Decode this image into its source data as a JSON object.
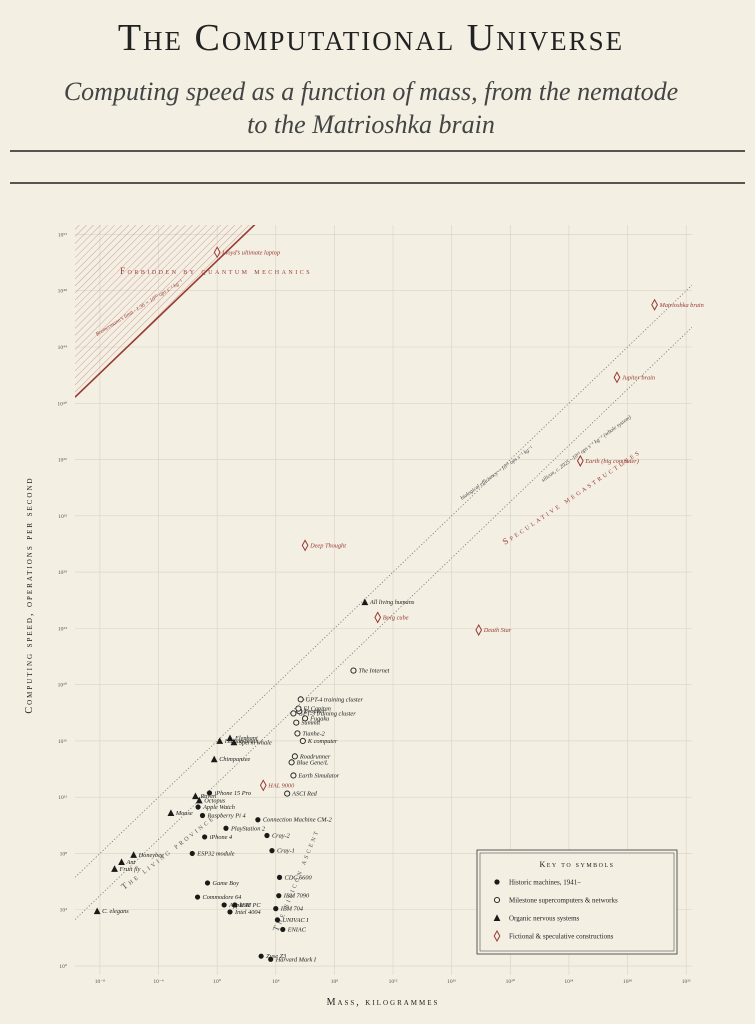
{
  "chart_data": {
    "type": "scatter",
    "title": "The Computational Universe",
    "subtitle": "Computing speed as a function of mass, from the nematode",
    "subtitle_line2": "to the Matrioshka brain",
    "x_label": "Mass, kilogrammes",
    "y_label": "Computing speed, operations per second",
    "log_x": true,
    "log_y": true,
    "grid": true,
    "xlim": [
      2e-10,
      2.5e+32
    ],
    "ylim": [
      0.23,
      4.7e+52
    ],
    "xticks": [
      {
        "value": 1e-08,
        "label": "10⁻⁸"
      },
      {
        "value": 0.0001,
        "label": "10⁻⁴"
      },
      {
        "value": 1,
        "label": "10⁰"
      },
      {
        "value": 10000.0,
        "label": "10⁴"
      },
      {
        "value": 100000000.0,
        "label": "10⁸"
      },
      {
        "value": 1000000000000.0,
        "label": "10¹²"
      },
      {
        "value": 1e+16,
        "label": "10¹⁶"
      },
      {
        "value": 1e+20,
        "label": "10²⁰"
      },
      {
        "value": 1e+24,
        "label": "10²⁴"
      },
      {
        "value": 1e+28,
        "label": "10²⁸"
      },
      {
        "value": 1e+32,
        "label": "10³²"
      }
    ],
    "yticks": [
      {
        "value": 1,
        "label": "10⁰"
      },
      {
        "value": 10000.0,
        "label": "10⁴"
      },
      {
        "value": 100000000.0,
        "label": "10⁸"
      },
      {
        "value": 1000000000000.0,
        "label": "10¹²"
      },
      {
        "value": 1e+16,
        "label": "10¹⁶"
      },
      {
        "value": 1e+20,
        "label": "10²⁰"
      },
      {
        "value": 1e+24,
        "label": "10²⁴"
      },
      {
        "value": 1e+28,
        "label": "10²⁸"
      },
      {
        "value": 1e+32,
        "label": "10³²"
      },
      {
        "value": 1e+36,
        "label": "10³⁶"
      },
      {
        "value": 1e+40,
        "label": "10⁴⁰"
      },
      {
        "value": 1e+44,
        "label": "10⁴⁴"
      },
      {
        "value": 1e+48,
        "label": "10⁴⁸"
      },
      {
        "value": 1e+52,
        "label": "10⁵²"
      }
    ],
    "region_label": "Forbidden by quantum mechanics",
    "annotations": [
      "Speculative megastructures",
      "The living province",
      "The silicon ascent"
    ],
    "reference_lines": [
      {
        "label": "Bremermann's limit · 1.36 × 10⁵⁰ ops s⁻¹ kg⁻¹",
        "coefficient": 1.36e+50,
        "color": "#9a3a34",
        "style": "solid"
      },
      {
        "label": "biological efficiency ~ 10¹⁶ ops s⁻¹ kg⁻¹",
        "coefficient": 1e+16,
        "color": "#777",
        "style": "dotted"
      },
      {
        "label": "silicon, c. 2025 ~10¹³ ops s⁻¹ kg⁻¹ (whole system)",
        "coefficient": 10000000000000.0,
        "color": "#777",
        "style": "dotted"
      }
    ],
    "legend": {
      "title": "Key to symbols",
      "position": "lower right"
    },
    "series": [
      {
        "name": "Historic machines, 1941–",
        "marker": "filled-circle",
        "color": "#1a1a1a",
        "labels": [
          "Zuse Z3",
          "Harvard Mark I",
          "ENIAC",
          "UNIVAC I",
          "IBM 704",
          "IBM 7090",
          "CDC 6600",
          "Cray-1",
          "Cray-2",
          "Connection Machine CM-2",
          "PlayStation 2",
          "iPhone 4",
          "ESP32 module",
          "Game Boy",
          "Commodore 64",
          "Apple II",
          "IBM PC",
          "Intel 4004",
          "iPhone 15 Pro",
          "Apple Watch",
          "Raspberry Pi 4"
        ],
        "x": [
          1000.0,
          4500.0,
          30000.0,
          13000.0,
          10000.0,
          16000.0,
          18000.0,
          5500.0,
          2500.0,
          600.0,
          4,
          0.14,
          0.02,
          0.22,
          0.046,
          3,
          16,
          7.5,
          0.3,
          0.05,
          0.1
        ],
        "values": [
          5,
          3,
          400,
          1900,
          12000.0,
          100000.0,
          2000000.0,
          160000000.0,
          1900000000.0,
          25000000000.0,
          6200000000.0,
          1500000000.0,
          100000000.0,
          800000.0,
          80000.0,
          22000.0,
          22000.0,
          7000.0,
          2000000000000.0,
          200000000000.0,
          50000000000.0
        ]
      },
      {
        "name": "Milestone supercomputers & networks",
        "marker": "open-circle",
        "color": "#1a1a1a",
        "labels": [
          "ASCI Red",
          "Earth Simulator",
          "Blue Gene/L",
          "Roadrunner",
          "K computer",
          "Tianhe-2",
          "Summit",
          "Fugaku",
          "GPT-3 training cluster",
          "Frontier",
          "El Capitan",
          "GPT-4 training cluster",
          "The Internet"
        ],
        "x": [
          60000.0,
          160000.0,
          120000.0,
          200000.0,
          700000.0,
          300000.0,
          250000.0,
          1000000.0,
          160000.0,
          400000.0,
          350000.0,
          500000.0,
          2000000000.0
        ],
        "values": [
          1800000000000.0,
          35000000000000.0,
          300000000000000.0,
          800000000000000.0,
          1e+16,
          3.4e+16,
          2e+17,
          4e+17,
          9e+17,
          1.3e+18,
          2e+18,
          9e+18,
          1e+21
        ]
      },
      {
        "name": "Organic nervous systems",
        "marker": "triangle",
        "color": "#1a1a1a",
        "labels": [
          "C. elegans",
          "Fruit fly",
          "Ant",
          "Honeybee",
          "Mouse",
          "Raven",
          "Octopus",
          "Chimpanzee",
          "Human brain",
          "Elephant",
          "Sperm whale",
          "All living humans"
        ],
        "x": [
          6.5e-09,
          1e-07,
          3e-07,
          2e-06,
          0.0007,
          0.033,
          0.06,
          0.63,
          1.5,
          7.5,
          14,
          12000000000.0
        ],
        "values": [
          8000.0,
          8000000.0,
          25000000.0,
          80000000.0,
          75000000000.0,
          1200000000000.0,
          600000000000.0,
          500000000000000.0,
          1e+16,
          1.6e+16,
          8000000000000000.0,
          7.4e+25
        ]
      },
      {
        "name": "Fictional & speculative constructions",
        "marker": "diamond",
        "color": "#9a3a34",
        "labels": [
          "Lloyd’s ultimate laptop",
          "Matrioshka brain",
          "Jupiter brain",
          "Earth (big computer)",
          "Deep Thought",
          "Borg cube",
          "Death Star",
          "HAL 9000"
        ],
        "x": [
          1,
          7e+29,
          1.9e+27,
          6e+24,
          1000000.0,
          90000000000.0,
          7e+17,
          1400.0
        ],
        "values": [
          5.4e+50,
          1e+47,
          7e+41,
          8e+35,
          8e+29,
          6e+24,
          7.6e+23,
          7000000000000.0
        ]
      }
    ]
  }
}
